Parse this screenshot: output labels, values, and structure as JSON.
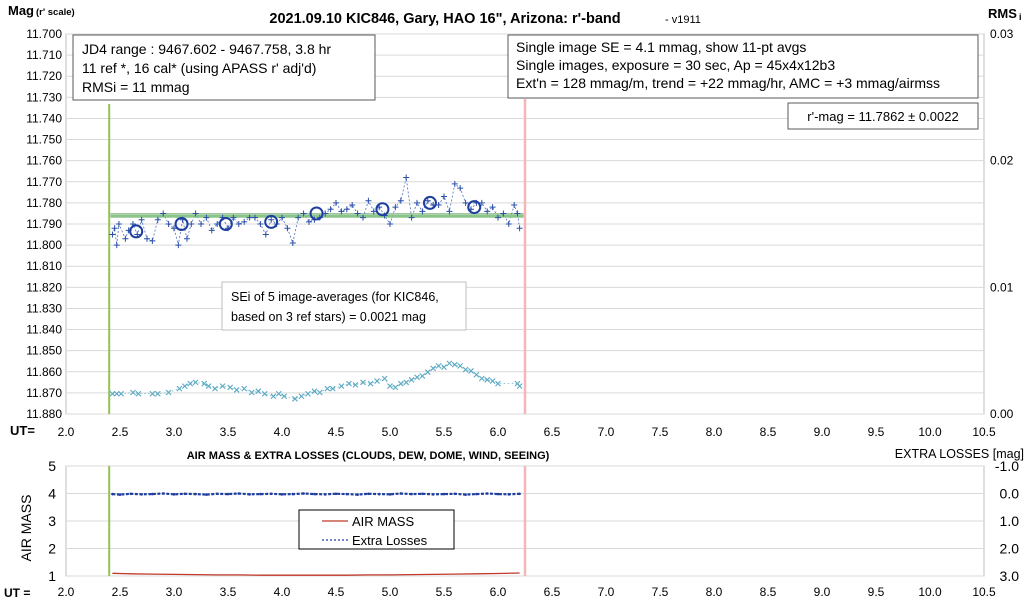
{
  "chart_data": [
    {
      "type": "scatter",
      "title": "2021.09.10 KIC846, Gary, HAO 16\", Arizona: r'-band",
      "title_suffix": "- v1911",
      "ylabel_main": "Mag",
      "ylabel_sub": "(r' scale)",
      "y2label_main": "RMS",
      "y2label_sub": "i",
      "xlabel": "UT=",
      "xlim": [
        2.0,
        10.5
      ],
      "ylim": [
        11.7,
        11.88
      ],
      "y_inverted": true,
      "y2lim": [
        0.0,
        0.03
      ],
      "x_ticks": [
        "2.0",
        "2.5",
        "3.0",
        "3.5",
        "4.0",
        "4.5",
        "5.0",
        "5.5",
        "6.0",
        "6.5",
        "7.0",
        "7.5",
        "8.0",
        "8.5",
        "9.0",
        "9.5",
        "10.0",
        "10.5"
      ],
      "y_ticks": [
        "11.700",
        "11.710",
        "11.720",
        "11.730",
        "11.740",
        "11.750",
        "11.760",
        "11.770",
        "11.780",
        "11.790",
        "11.800",
        "11.810",
        "11.820",
        "11.830",
        "11.840",
        "11.850",
        "11.860",
        "11.870",
        "11.880"
      ],
      "y2_ticks": [
        "0.03",
        "0.02",
        "0.01",
        "0.00"
      ],
      "grid": true,
      "start_line_ut": 2.4,
      "end_line_ut": 6.25,
      "mean_mag": 11.7862,
      "info_left": [
        "JD4 range : 9467.602 - 9467.758,  3.8  hr",
        "11 ref *, 16 cal* (using APASS r' adj'd)",
        "RMSi = 11 mmag"
      ],
      "info_right": [
        "Single image SE = 4.1 mmag, show  11-pt avgs",
        "Single images, exposure = 30 sec, Ap = 45x4x12b3",
        "Ext'n = 128 mmag/m, trend =  +22 mmag/hr, AMC = +3 mmag/airmss"
      ],
      "result_box": "r'-mag = 11.7862 ± 0.0022",
      "sei_box": [
        "SEi of 5 image-averages (for KIC846,",
        "based on 3 ref stars) = 0.0021 mag"
      ],
      "series": [
        {
          "kind": "single_images",
          "x": [
            2.43,
            2.45,
            2.47,
            2.49,
            2.55,
            2.58,
            2.62,
            2.66,
            2.7,
            2.75,
            2.8,
            2.85,
            2.9,
            2.95,
            3.0,
            3.04,
            3.08,
            3.12,
            3.16,
            3.2,
            3.25,
            3.3,
            3.35,
            3.4,
            3.45,
            3.5,
            3.55,
            3.6,
            3.65,
            3.7,
            3.75,
            3.8,
            3.85,
            3.9,
            3.95,
            4.0,
            4.05,
            4.1,
            4.15,
            4.2,
            4.25,
            4.3,
            4.35,
            4.4,
            4.45,
            4.5,
            4.55,
            4.6,
            4.65,
            4.7,
            4.75,
            4.8,
            4.85,
            4.9,
            4.95,
            5.0,
            5.05,
            5.1,
            5.15,
            5.2,
            5.25,
            5.3,
            5.35,
            5.4,
            5.45,
            5.5,
            5.55,
            5.6,
            5.65,
            5.7,
            5.75,
            5.8,
            5.85,
            5.9,
            5.95,
            6.0,
            6.05,
            6.1,
            6.15,
            6.18,
            6.2
          ],
          "y": [
            11.795,
            11.792,
            11.8,
            11.79,
            11.797,
            11.793,
            11.79,
            11.795,
            11.788,
            11.797,
            11.798,
            11.788,
            11.785,
            11.79,
            11.792,
            11.8,
            11.788,
            11.797,
            11.79,
            11.785,
            11.79,
            11.787,
            11.793,
            11.79,
            11.787,
            11.792,
            11.787,
            11.79,
            11.789,
            11.787,
            11.787,
            11.79,
            11.795,
            11.788,
            11.79,
            11.787,
            11.792,
            11.799,
            11.787,
            11.785,
            11.789,
            11.788,
            11.787,
            11.785,
            11.783,
            11.78,
            11.784,
            11.783,
            11.781,
            11.785,
            11.787,
            11.779,
            11.784,
            11.782,
            11.786,
            11.79,
            11.782,
            11.779,
            11.768,
            11.787,
            11.78,
            11.784,
            11.779,
            11.781,
            11.781,
            11.777,
            11.784,
            11.771,
            11.773,
            11.78,
            11.783,
            11.78,
            11.78,
            11.784,
            11.782,
            11.787,
            11.785,
            11.79,
            11.781,
            11.785,
            11.792
          ]
        },
        {
          "kind": "averages",
          "x": [
            2.65,
            3.07,
            3.48,
            3.9,
            4.32,
            4.93,
            5.37,
            5.78
          ],
          "y": [
            11.7935,
            11.79,
            11.79,
            11.789,
            11.785,
            11.783,
            11.78,
            11.782
          ]
        },
        {
          "kind": "rms_i",
          "x": [
            2.43,
            2.47,
            2.51,
            2.62,
            2.67,
            2.8,
            2.85,
            2.95,
            3.05,
            3.1,
            3.15,
            3.2,
            3.28,
            3.32,
            3.38,
            3.45,
            3.52,
            3.58,
            3.65,
            3.72,
            3.78,
            3.84,
            3.92,
            3.97,
            4.02,
            4.12,
            4.18,
            4.24,
            4.3,
            4.35,
            4.42,
            4.47,
            4.55,
            4.62,
            4.68,
            4.75,
            4.82,
            4.88,
            4.95,
            5.0,
            5.05,
            5.1,
            5.15,
            5.2,
            5.25,
            5.3,
            5.35,
            5.4,
            5.45,
            5.5,
            5.55,
            5.6,
            5.65,
            5.7,
            5.75,
            5.8,
            5.85,
            5.9,
            5.95,
            6.0,
            6.18,
            6.2
          ],
          "y": [
            0.0016,
            0.0016,
            0.0016,
            0.0017,
            0.0016,
            0.0016,
            0.0016,
            0.0017,
            0.002,
            0.0022,
            0.0024,
            0.0025,
            0.0024,
            0.0022,
            0.002,
            0.0022,
            0.0021,
            0.0019,
            0.002,
            0.0017,
            0.0018,
            0.0016,
            0.0014,
            0.0016,
            0.0014,
            0.0012,
            0.0014,
            0.0016,
            0.0018,
            0.0017,
            0.002,
            0.002,
            0.0022,
            0.0024,
            0.0023,
            0.0025,
            0.0024,
            0.0026,
            0.0028,
            0.0022,
            0.0021,
            0.0024,
            0.0025,
            0.0027,
            0.0029,
            0.003,
            0.0033,
            0.0036,
            0.0038,
            0.0037,
            0.004,
            0.0039,
            0.0038,
            0.0035,
            0.0034,
            0.0031,
            0.0028,
            0.0027,
            0.0026,
            0.0024,
            0.0024,
            0.0022
          ]
        }
      ]
    },
    {
      "type": "line",
      "title": "AIR MASS & EXTRA LOSSES (CLOUDS, DEW, DOME, WIND, SEEING)",
      "ylabel": "AIR MASS",
      "y2label": "EXTRA LOSSES [mag]",
      "xlabel": "UT =",
      "xlim": [
        2.0,
        10.5
      ],
      "ylim": [
        1,
        5
      ],
      "y2lim": [
        -1.0,
        3.0
      ],
      "y2_inverted": true,
      "x_ticks": [
        "2.0",
        "2.5",
        "3.0",
        "3.5",
        "4.0",
        "4.5",
        "5.0",
        "5.5",
        "6.0",
        "6.5",
        "7.0",
        "7.5",
        "8.0",
        "8.5",
        "9.0",
        "9.5",
        "10.0",
        "10.5"
      ],
      "y_ticks": [
        "5",
        "4",
        "3",
        "2",
        "1"
      ],
      "y2_ticks": [
        "-1.0",
        "0.0",
        "1.0",
        "2.0",
        "3.0"
      ],
      "grid": true,
      "legend_position": "center-left",
      "series": [
        {
          "name": "AIR MASS",
          "color": "#c0392b",
          "x": [
            2.43,
            2.6,
            2.8,
            3.0,
            3.2,
            3.4,
            3.6,
            3.8,
            4.0,
            4.2,
            4.4,
            4.6,
            4.8,
            5.0,
            5.2,
            5.4,
            5.6,
            5.8,
            6.0,
            6.2
          ],
          "y": [
            1.1,
            1.08,
            1.07,
            1.06,
            1.05,
            1.04,
            1.04,
            1.03,
            1.03,
            1.03,
            1.03,
            1.03,
            1.04,
            1.04,
            1.05,
            1.06,
            1.07,
            1.08,
            1.09,
            1.11
          ]
        },
        {
          "name": "Extra Losses",
          "color": "#1f3fa0",
          "x": [
            2.43,
            2.5,
            2.6,
            2.7,
            2.8,
            2.9,
            3.0,
            3.1,
            3.2,
            3.3,
            3.4,
            3.5,
            3.6,
            3.7,
            3.8,
            3.9,
            4.0,
            4.1,
            4.2,
            4.3,
            4.4,
            4.5,
            4.6,
            4.7,
            4.8,
            4.9,
            5.0,
            5.1,
            5.2,
            5.3,
            5.4,
            5.5,
            5.6,
            5.7,
            5.8,
            5.9,
            6.0,
            6.1,
            6.2
          ],
          "y": [
            0.02,
            0.04,
            0.01,
            0.03,
            0.02,
            0.0,
            0.03,
            0.01,
            0.02,
            0.04,
            0.01,
            0.02,
            0.0,
            0.03,
            0.02,
            0.01,
            0.03,
            0.02,
            0.0,
            0.02,
            0.03,
            0.01,
            0.02,
            0.04,
            0.01,
            0.02,
            0.03,
            0.0,
            0.02,
            0.01,
            0.03,
            0.02,
            0.01,
            0.04,
            0.02,
            0.0,
            0.02,
            0.03,
            0.01
          ]
        }
      ]
    }
  ]
}
